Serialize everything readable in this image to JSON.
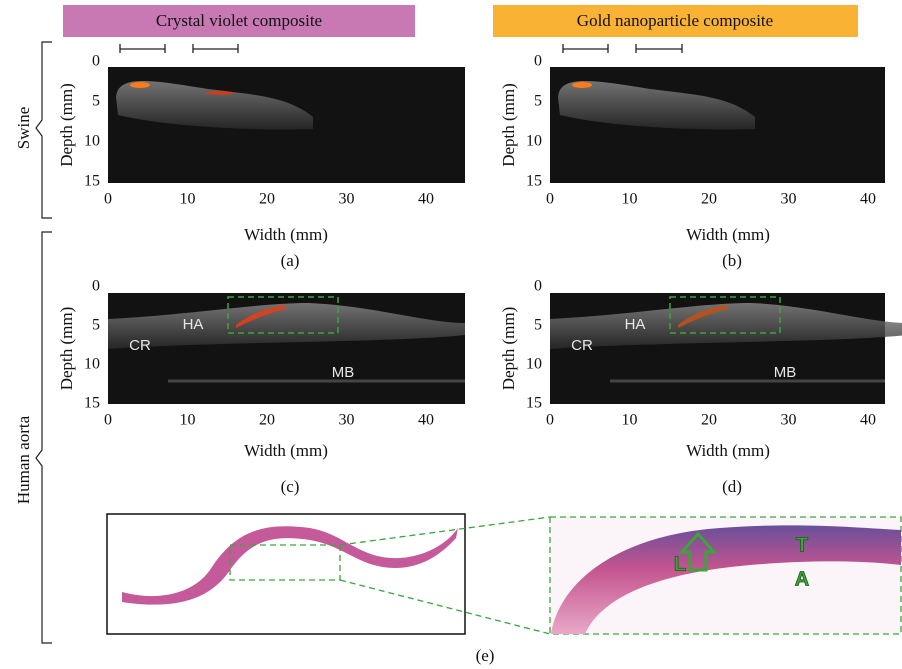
{
  "headers": [
    "Crystal violet composite",
    "Gold nanoparticle composite"
  ],
  "row_labels": [
    "Swine",
    "Human aorta"
  ],
  "panels": [
    {
      "caption": "(a)",
      "xlabel": "Width (mm)",
      "ylabel": "Depth (mm)",
      "xticks": [
        0,
        10,
        20,
        30,
        40
      ],
      "yticks": [
        0,
        5,
        10,
        15
      ],
      "annotations": []
    },
    {
      "caption": "(b)",
      "xlabel": "Width (mm)",
      "ylabel": "Depth (mm)",
      "xticks": [
        0,
        10,
        20,
        30,
        40
      ],
      "yticks": [
        0,
        5,
        10,
        15
      ],
      "annotations": []
    },
    {
      "caption": "(c)",
      "xlabel": "Width (mm)",
      "ylabel": "Depth (mm)",
      "xticks": [
        0,
        10,
        20,
        30,
        40
      ],
      "yticks": [
        0,
        5,
        10,
        15
      ],
      "annotations": [
        "HA",
        "CR",
        "MB"
      ]
    },
    {
      "caption": "(d)",
      "xlabel": "Width (mm)",
      "ylabel": "Depth (mm)",
      "xticks": [
        0,
        10,
        20,
        30,
        40
      ],
      "yticks": [
        0,
        5,
        10,
        15
      ],
      "annotations": [
        "HA",
        "CR",
        "MB"
      ]
    }
  ],
  "histology": {
    "caption": "(e)",
    "labels": [
      "L",
      "T",
      "A"
    ]
  }
}
